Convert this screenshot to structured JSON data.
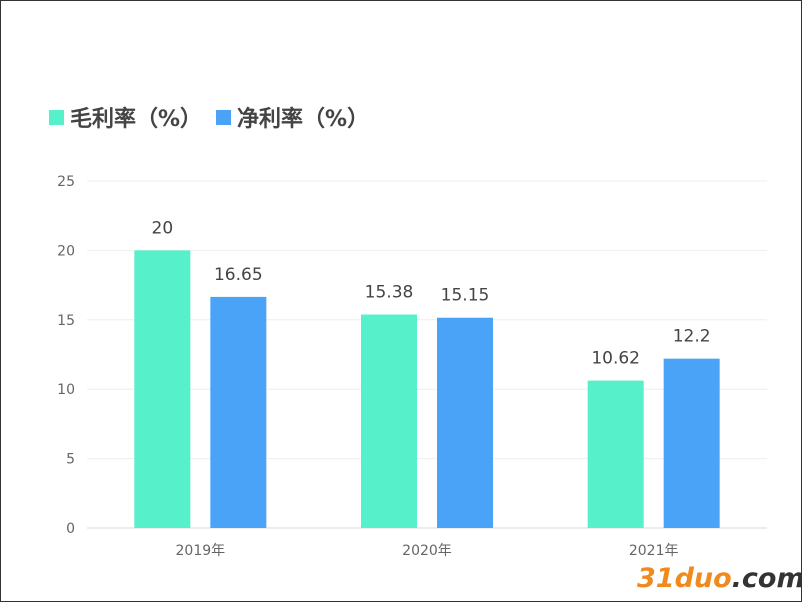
{
  "chart_data": {
    "type": "bar",
    "categories": [
      "2019年",
      "2020年",
      "2021年"
    ],
    "series": [
      {
        "name": "毛利率（%）",
        "values": [
          20,
          15.38,
          10.62
        ],
        "color": "#56f0ca"
      },
      {
        "name": "净利率（%）",
        "values": [
          16.65,
          15.15,
          12.2
        ],
        "color": "#4ba3f7"
      }
    ],
    "data_labels": [
      [
        "20",
        "16.65"
      ],
      [
        "15.38",
        "15.15"
      ],
      [
        "10.62",
        "12.2"
      ]
    ],
    "ylim": [
      0,
      25
    ],
    "yticks": [
      0,
      5,
      10,
      15,
      20,
      25
    ],
    "grid": true,
    "legend_position": "top-left"
  },
  "watermark": {
    "part1": "31duo",
    "part2": ".com"
  }
}
